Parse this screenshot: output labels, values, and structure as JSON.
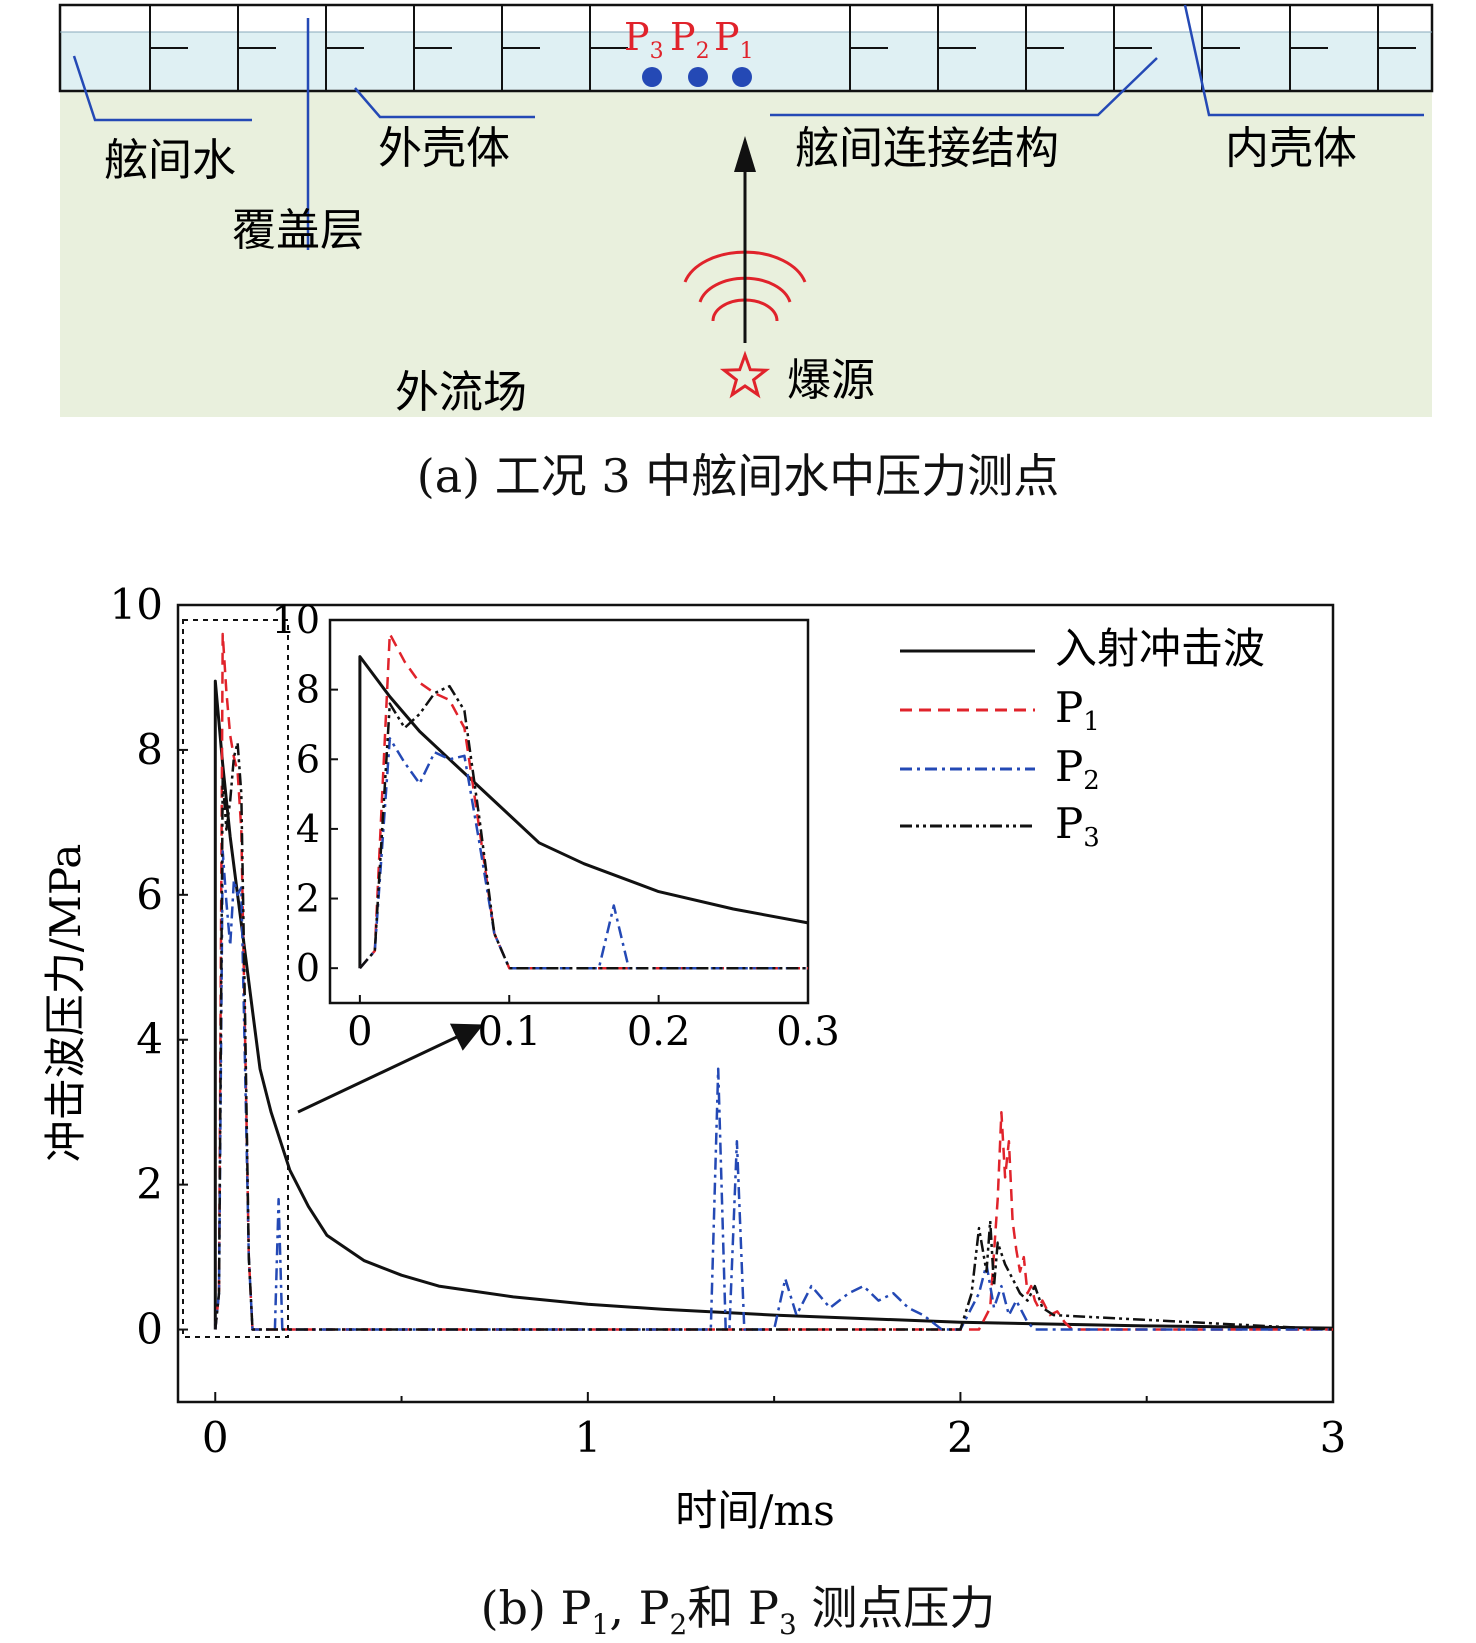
{
  "panel_a": {
    "caption": "(a) 工况 3 中舷间水中压力测点",
    "labels": {
      "water": "舷间水",
      "covering": "覆盖层",
      "outer_hull": "外壳体",
      "connection": "舷间连接结构",
      "inner_hull": "内壳体",
      "outer_field": "外流场",
      "source": "爆源"
    },
    "points": [
      {
        "name": "P",
        "sub": "3"
      },
      {
        "name": "P",
        "sub": "2"
      },
      {
        "name": "P",
        "sub": "1"
      }
    ],
    "colors": {
      "water": "#dff0f3",
      "field": "#e9f0dd",
      "point": "#2449b5",
      "point_label": "#e0232b",
      "wave": "#e0232b",
      "leader": "#2449b5"
    }
  },
  "panel_b": {
    "caption_prefix": "(b) P",
    "caption_mid1": ", P",
    "caption_mid2": "和 P",
    "caption_suffix": " 测点压力",
    "sub1": "1",
    "sub2": "2",
    "sub3": "3"
  },
  "chart_data": {
    "type": "line",
    "title": "",
    "xlabel": "时间/ms",
    "ylabel": "冲击波压力/MPa",
    "xlim": [
      -0.1,
      3
    ],
    "ylim": [
      -1,
      10
    ],
    "xticks": [
      0,
      1,
      2,
      3
    ],
    "yticks": [
      0,
      2,
      4,
      6,
      8,
      10
    ],
    "grid": false,
    "legend": "top-right",
    "legend_entries": [
      {
        "label": "入射冲击波",
        "sub": "",
        "color": "#111111",
        "dash": "solid"
      },
      {
        "label": "P",
        "sub": "1",
        "color": "#e0232b",
        "dash": "dash"
      },
      {
        "label": "P",
        "sub": "2",
        "color": "#2449b5",
        "dash": "dashdot"
      },
      {
        "label": "P",
        "sub": "3",
        "color": "#111111",
        "dash": "dashdotdot"
      }
    ],
    "series": [
      {
        "name": "入射冲击波",
        "color": "#111111",
        "x": [
          0,
          1e-06,
          0.02,
          0.04,
          0.06,
          0.08,
          0.1,
          0.12,
          0.15,
          0.2,
          0.25,
          0.3,
          0.4,
          0.5,
          0.6,
          0.8,
          1.0,
          1.2,
          1.5,
          2.0,
          2.5,
          3.0
        ],
        "y": [
          0,
          8.95,
          7.8,
          6.8,
          6.0,
          5.2,
          4.4,
          3.6,
          3.0,
          2.2,
          1.7,
          1.3,
          0.95,
          0.75,
          0.6,
          0.45,
          0.35,
          0.28,
          0.2,
          0.1,
          0.05,
          0.02
        ]
      },
      {
        "name": "P1",
        "color": "#e0232b",
        "x": [
          0,
          0.01,
          0.02,
          0.03,
          0.04,
          0.05,
          0.06,
          0.07,
          0.08,
          0.09,
          0.1,
          0.2,
          1.0,
          2.05,
          2.08,
          2.1,
          2.11,
          2.12,
          2.13,
          2.14,
          2.15,
          2.16,
          2.17,
          2.18,
          2.19,
          2.2,
          2.21,
          2.22,
          2.24,
          2.26,
          2.28,
          2.3,
          3.0
        ],
        "y": [
          0,
          0.5,
          9.6,
          8.8,
          8.2,
          7.9,
          7.7,
          6.9,
          4.0,
          1.0,
          0,
          0,
          0,
          0,
          0.3,
          1.8,
          3.0,
          2.1,
          2.6,
          1.5,
          1.1,
          0.8,
          1.0,
          0.5,
          0.6,
          0.4,
          0.3,
          0.4,
          0.2,
          0.25,
          0.1,
          0,
          0
        ]
      },
      {
        "name": "P2",
        "color": "#2449b5",
        "x": [
          0,
          0.01,
          0.02,
          0.03,
          0.04,
          0.05,
          0.06,
          0.07,
          0.08,
          0.09,
          0.1,
          0.16,
          0.17,
          0.18,
          1.0,
          1.33,
          1.35,
          1.37,
          1.38,
          1.4,
          1.42,
          1.5,
          1.53,
          1.56,
          1.6,
          1.65,
          1.7,
          1.74,
          1.78,
          1.82,
          1.86,
          1.9,
          1.95,
          2.0,
          2.05,
          2.07,
          2.09,
          2.11,
          2.13,
          2.15,
          2.18,
          2.2,
          3.0
        ],
        "y": [
          0,
          0.5,
          6.6,
          5.9,
          5.3,
          6.2,
          6.0,
          6.1,
          3.6,
          1.0,
          0,
          0,
          1.8,
          0,
          0,
          0,
          3.6,
          0,
          0,
          2.6,
          0,
          0,
          0.7,
          0.2,
          0.6,
          0.3,
          0.5,
          0.6,
          0.4,
          0.5,
          0.3,
          0.2,
          0,
          0,
          0.5,
          0.9,
          0.3,
          0.6,
          0.2,
          0.4,
          0.1,
          0,
          0
        ]
      },
      {
        "name": "P3",
        "color": "#111111",
        "x": [
          0,
          0.01,
          0.02,
          0.03,
          0.04,
          0.05,
          0.06,
          0.07,
          0.08,
          0.09,
          0.1,
          0.2,
          1.0,
          2.0,
          2.03,
          2.05,
          2.07,
          2.08,
          2.09,
          2.1,
          2.12,
          2.14,
          2.16,
          2.18,
          2.2,
          2.22,
          2.25,
          3.0
        ],
        "y": [
          0,
          0.5,
          7.6,
          6.9,
          7.3,
          7.9,
          8.1,
          7.4,
          4.3,
          1.0,
          0,
          0,
          0,
          0,
          0.5,
          1.4,
          0.8,
          1.5,
          0.6,
          1.2,
          0.9,
          0.7,
          0.5,
          0.4,
          0.6,
          0.3,
          0.2,
          0
        ]
      }
    ],
    "inset": {
      "xlim": [
        -0.02,
        0.3
      ],
      "ylim": [
        -1,
        10
      ],
      "xticks": [
        0,
        0.1,
        0.2,
        0.3
      ],
      "xtick_labels": [
        "0",
        "0.1",
        "0.2",
        "0.3"
      ],
      "yticks": [
        0,
        2,
        4,
        6,
        8,
        10
      ]
    }
  }
}
